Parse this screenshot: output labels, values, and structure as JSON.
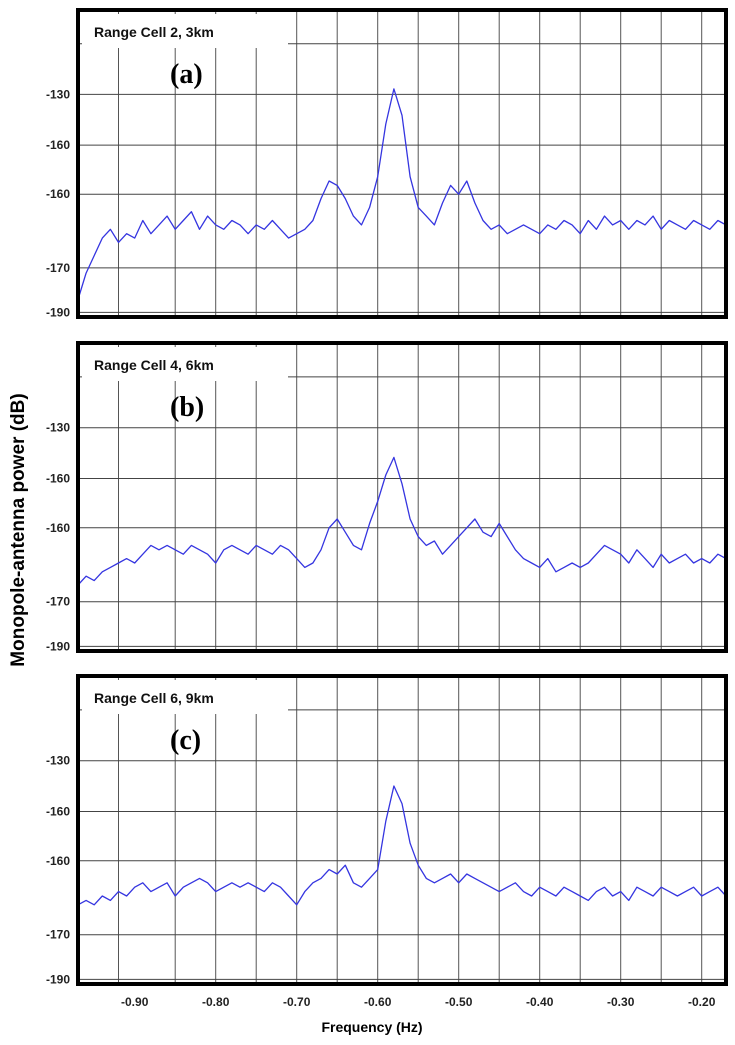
{
  "figure": {
    "ylabel": "Monopole-antenna power (dB)",
    "xlabel": "Frequency (Hz)"
  },
  "chart_data": [
    {
      "type": "line",
      "title": "Range Cell 2, 3km",
      "panel_label": "(a)",
      "xlim": [
        -0.97,
        -0.17
      ],
      "ylim": [
        -190,
        -120
      ],
      "y_tick_labels": [
        "-130",
        "-160",
        "-160",
        "-170",
        "-190"
      ],
      "grid": true,
      "color": "#3535e0",
      "series": [
        {
          "x": [
            -0.97,
            -0.96,
            -0.95,
            -0.94,
            -0.93,
            -0.92,
            -0.91,
            -0.9,
            -0.89,
            -0.88,
            -0.87,
            -0.86,
            -0.85,
            -0.84,
            -0.83,
            -0.82,
            -0.81,
            -0.8,
            -0.79,
            -0.78,
            -0.77,
            -0.76,
            -0.75,
            -0.74,
            -0.73,
            -0.72,
            -0.71,
            -0.7,
            -0.69,
            -0.68,
            -0.67,
            -0.66,
            -0.65,
            -0.64,
            -0.63,
            -0.62,
            -0.61,
            -0.6,
            -0.59,
            -0.58,
            -0.57,
            -0.56,
            -0.55,
            -0.54,
            -0.53,
            -0.52,
            -0.51,
            -0.5,
            -0.49,
            -0.48,
            -0.47,
            -0.46,
            -0.45,
            -0.44,
            -0.43,
            -0.42,
            -0.41,
            -0.4,
            -0.39,
            -0.38,
            -0.37,
            -0.36,
            -0.35,
            -0.34,
            -0.33,
            -0.32,
            -0.31,
            -0.3,
            -0.29,
            -0.28,
            -0.27,
            -0.26,
            -0.25,
            -0.24,
            -0.23,
            -0.22,
            -0.21,
            -0.2,
            -0.19,
            -0.18,
            -0.17
          ],
          "y": [
            -186,
            -180,
            -176,
            -172,
            -170,
            -173,
            -171,
            -172,
            -168,
            -171,
            -169,
            -167,
            -170,
            -168,
            -166,
            -170,
            -167,
            -169,
            -170,
            -168,
            -169,
            -171,
            -169,
            -170,
            -168,
            -170,
            -172,
            -171,
            -170,
            -168,
            -163,
            -159,
            -160,
            -163,
            -167,
            -169,
            -165,
            -158,
            -146,
            -138,
            -144,
            -158,
            -165,
            -167,
            -169,
            -164,
            -160,
            -162,
            -159,
            -164,
            -168,
            -170,
            -169,
            -171,
            -170,
            -169,
            -170,
            -171,
            -169,
            -170,
            -168,
            -169,
            -171,
            -168,
            -170,
            -167,
            -169,
            -168,
            -170,
            -168,
            -169,
            -167,
            -170,
            -168,
            -169,
            -170,
            -168,
            -169,
            -170,
            -168,
            -169
          ]
        }
      ]
    },
    {
      "type": "line",
      "title": "Range Cell 4, 6km",
      "panel_label": "(b)",
      "xlim": [
        -0.97,
        -0.17
      ],
      "ylim": [
        -190,
        -120
      ],
      "y_tick_labels": [
        "-130",
        "-160",
        "-160",
        "-170",
        "-190"
      ],
      "grid": true,
      "color": "#3535e0",
      "series": [
        {
          "x": [
            -0.97,
            -0.96,
            -0.95,
            -0.94,
            -0.93,
            -0.92,
            -0.91,
            -0.9,
            -0.89,
            -0.88,
            -0.87,
            -0.86,
            -0.85,
            -0.84,
            -0.83,
            -0.82,
            -0.81,
            -0.8,
            -0.79,
            -0.78,
            -0.77,
            -0.76,
            -0.75,
            -0.74,
            -0.73,
            -0.72,
            -0.71,
            -0.7,
            -0.69,
            -0.68,
            -0.67,
            -0.66,
            -0.65,
            -0.64,
            -0.63,
            -0.62,
            -0.61,
            -0.6,
            -0.59,
            -0.58,
            -0.57,
            -0.56,
            -0.55,
            -0.54,
            -0.53,
            -0.52,
            -0.51,
            -0.5,
            -0.49,
            -0.48,
            -0.47,
            -0.46,
            -0.45,
            -0.44,
            -0.43,
            -0.42,
            -0.41,
            -0.4,
            -0.39,
            -0.38,
            -0.37,
            -0.36,
            -0.35,
            -0.34,
            -0.33,
            -0.32,
            -0.31,
            -0.3,
            -0.29,
            -0.28,
            -0.27,
            -0.26,
            -0.25,
            -0.24,
            -0.23,
            -0.22,
            -0.21,
            -0.2,
            -0.19,
            -0.18,
            -0.17
          ],
          "y": [
            -175,
            -173,
            -174,
            -172,
            -171,
            -170,
            -169,
            -170,
            -168,
            -166,
            -167,
            -166,
            -167,
            -168,
            -166,
            -167,
            -168,
            -170,
            -167,
            -166,
            -167,
            -168,
            -166,
            -167,
            -168,
            -166,
            -167,
            -169,
            -171,
            -170,
            -167,
            -162,
            -160,
            -163,
            -166,
            -167,
            -161,
            -156,
            -150,
            -146,
            -152,
            -160,
            -164,
            -166,
            -165,
            -168,
            -166,
            -164,
            -162,
            -160,
            -163,
            -164,
            -161,
            -164,
            -167,
            -169,
            -170,
            -171,
            -169,
            -172,
            -171,
            -170,
            -171,
            -170,
            -168,
            -166,
            -167,
            -168,
            -170,
            -167,
            -169,
            -171,
            -168,
            -170,
            -169,
            -168,
            -170,
            -169,
            -170,
            -168,
            -169
          ]
        }
      ]
    },
    {
      "type": "line",
      "title": "Range Cell 6, 9km",
      "panel_label": "(c)",
      "xlim": [
        -0.97,
        -0.17
      ],
      "ylim": [
        -190,
        -120
      ],
      "y_tick_labels": [
        "-130",
        "-160",
        "-160",
        "-170",
        "-190"
      ],
      "grid": true,
      "color": "#3535e0",
      "series": [
        {
          "x": [
            -0.97,
            -0.96,
            -0.95,
            -0.94,
            -0.93,
            -0.92,
            -0.91,
            -0.9,
            -0.89,
            -0.88,
            -0.87,
            -0.86,
            -0.85,
            -0.84,
            -0.83,
            -0.82,
            -0.81,
            -0.8,
            -0.79,
            -0.78,
            -0.77,
            -0.76,
            -0.75,
            -0.74,
            -0.73,
            -0.72,
            -0.71,
            -0.7,
            -0.69,
            -0.68,
            -0.67,
            -0.66,
            -0.65,
            -0.64,
            -0.63,
            -0.62,
            -0.61,
            -0.6,
            -0.59,
            -0.58,
            -0.57,
            -0.56,
            -0.55,
            -0.54,
            -0.53,
            -0.52,
            -0.51,
            -0.5,
            -0.49,
            -0.48,
            -0.47,
            -0.46,
            -0.45,
            -0.44,
            -0.43,
            -0.42,
            -0.41,
            -0.4,
            -0.39,
            -0.38,
            -0.37,
            -0.36,
            -0.35,
            -0.34,
            -0.33,
            -0.32,
            -0.31,
            -0.3,
            -0.29,
            -0.28,
            -0.27,
            -0.26,
            -0.25,
            -0.24,
            -0.23,
            -0.22,
            -0.21,
            -0.2,
            -0.19,
            -0.18,
            -0.17
          ],
          "y": [
            -172,
            -171,
            -172,
            -170,
            -171,
            -169,
            -170,
            -168,
            -167,
            -169,
            -168,
            -167,
            -170,
            -168,
            -167,
            -166,
            -167,
            -169,
            -168,
            -167,
            -168,
            -167,
            -168,
            -169,
            -167,
            -168,
            -170,
            -172,
            -169,
            -167,
            -166,
            -164,
            -165,
            -163,
            -167,
            -168,
            -166,
            -164,
            -153,
            -145,
            -149,
            -158,
            -163,
            -166,
            -167,
            -166,
            -165,
            -167,
            -165,
            -166,
            -167,
            -168,
            -169,
            -168,
            -167,
            -169,
            -170,
            -168,
            -169,
            -170,
            -168,
            -169,
            -170,
            -171,
            -169,
            -168,
            -170,
            -169,
            -171,
            -168,
            -169,
            -170,
            -168,
            -169,
            -170,
            -169,
            -168,
            -170,
            -169,
            -168,
            -170
          ]
        }
      ]
    }
  ]
}
